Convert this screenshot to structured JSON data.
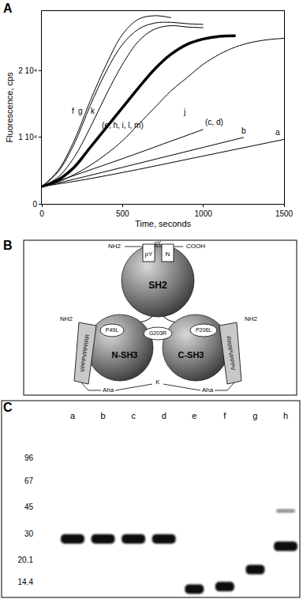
{
  "panel_labels": [
    "A",
    "B",
    "C"
  ],
  "chart_data": {
    "type": "line",
    "x_label": "Time, seconds",
    "y_label": "Fluorescence, cps",
    "xlim": [
      0,
      1500
    ],
    "xticks": [
      0,
      500,
      1000,
      1500
    ],
    "ylim": [
      0,
      29000
    ],
    "yticks": [
      0,
      {
        "value": 10000,
        "label": "1 10⁴"
      },
      {
        "value": 20000,
        "label": "2 10⁴"
      }
    ],
    "grid": false,
    "color": "#000000",
    "series": [
      {
        "name": "f",
        "line_style": "solid",
        "x": [
          0,
          100,
          200,
          300,
          400,
          500,
          600,
          700,
          800
        ],
        "values": [
          2600,
          5000,
          9500,
          15500,
          21000,
          25500,
          27800,
          28300,
          28000
        ]
      },
      {
        "name": "g",
        "line_style": "solid",
        "x": [
          0,
          100,
          200,
          300,
          400,
          500,
          600,
          700,
          800,
          900,
          1000
        ],
        "values": [
          2600,
          4800,
          9000,
          14800,
          20000,
          24000,
          26300,
          27200,
          27300,
          27100,
          27000
        ]
      },
      {
        "name": "k",
        "line_style": "solid",
        "x": [
          0,
          100,
          200,
          300,
          400,
          500,
          600,
          700,
          800,
          900,
          1000
        ],
        "values": [
          2600,
          4000,
          7000,
          11500,
          16500,
          21000,
          24500,
          26300,
          26800,
          26600,
          26500
        ]
      },
      {
        "name": "(e, h, i, l, m)",
        "line_style": "thick",
        "x": [
          0,
          100,
          200,
          300,
          400,
          500,
          600,
          700,
          800,
          900,
          1000,
          1100,
          1200
        ],
        "values": [
          2600,
          3600,
          5500,
          8500,
          11500,
          14500,
          17500,
          20300,
          22500,
          24000,
          24800,
          25200,
          25300
        ]
      },
      {
        "name": "j",
        "line_style": "solid",
        "x": [
          0,
          100,
          200,
          300,
          400,
          500,
          600,
          700,
          800,
          900,
          1000,
          1100,
          1200,
          1300,
          1400,
          1500
        ],
        "values": [
          2600,
          3300,
          4400,
          5800,
          7500,
          9500,
          12000,
          14500,
          17000,
          19000,
          21000,
          22500,
          23600,
          24300,
          24700,
          24900
        ]
      },
      {
        "name": "(c, d)",
        "line_style": "solid",
        "x": [
          0,
          250,
          500,
          750,
          1000
        ],
        "values": [
          2600,
          4700,
          6800,
          9000,
          11200
        ]
      },
      {
        "name": "b",
        "line_style": "solid",
        "x": [
          0,
          250,
          500,
          750,
          1000,
          1250
        ],
        "values": [
          2600,
          4000,
          5500,
          7000,
          8500,
          10000
        ]
      },
      {
        "name": "a",
        "line_style": "solid",
        "x": [
          0,
          300,
          600,
          900,
          1200,
          1500
        ],
        "values": [
          2600,
          3800,
          5200,
          6700,
          8200,
          9700
        ]
      }
    ],
    "annotations": [
      {
        "text": "f",
        "x": 195,
        "y": 14000
      },
      {
        "text": "g",
        "x": 240,
        "y": 14000
      },
      {
        "text": "k",
        "x": 320,
        "y": 14000
      },
      {
        "text": "(e, h, i, l, m)",
        "x": 500,
        "y": 11800
      },
      {
        "text": "j",
        "x": 880,
        "y": 13800
      },
      {
        "text": "(c, d)",
        "x": 1070,
        "y": 12300
      },
      {
        "text": "b",
        "x": 1250,
        "y": 11000
      },
      {
        "text": "a",
        "x": 1460,
        "y": 10800
      }
    ]
  },
  "diagram": {
    "sh2": {
      "name": "SH2",
      "nterm": "NH2",
      "pocket_left": "pY",
      "ligand": "pY",
      "pocket_right": "N",
      "cterm": "COOH"
    },
    "nsh3": {
      "name": "N-SH3",
      "nterm": "NH2",
      "peptide": "VPPPVPPRRR",
      "mutation": "P49L"
    },
    "csh3": {
      "name": "C-SH3",
      "nterm": "NH2",
      "peptide": "RRRPVPPPV",
      "mutation": "P206L"
    },
    "interface_mutation": "G203R",
    "linker": {
      "center": "K",
      "spacers": [
        "Aha",
        "Aha"
      ]
    }
  },
  "gel": {
    "mw_markers": [
      96,
      67,
      45,
      30,
      20.1,
      14.4
    ],
    "lanes": [
      {
        "label": "a",
        "bands": [
          28
        ],
        "faint_bands": []
      },
      {
        "label": "b",
        "bands": [
          28
        ],
        "faint_bands": []
      },
      {
        "label": "c",
        "bands": [
          28
        ],
        "faint_bands": []
      },
      {
        "label": "d",
        "bands": [
          28
        ],
        "faint_bands": []
      },
      {
        "label": "e",
        "bands": [
          13
        ],
        "faint_bands": []
      },
      {
        "label": "f",
        "bands": [
          13.5
        ],
        "faint_bands": []
      },
      {
        "label": "g",
        "bands": [
          17.5
        ],
        "faint_bands": []
      },
      {
        "label": "h",
        "bands": [
          25
        ],
        "faint_bands": [
          43
        ]
      }
    ]
  }
}
